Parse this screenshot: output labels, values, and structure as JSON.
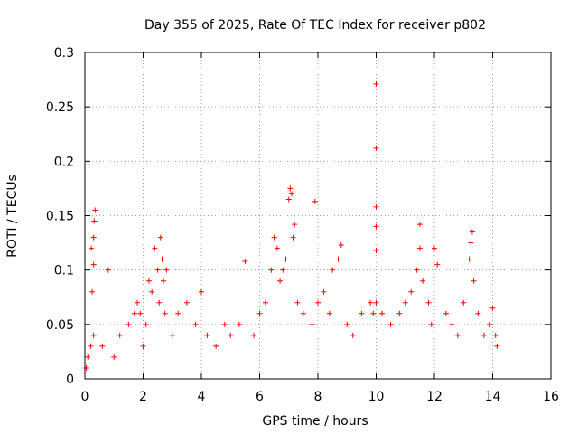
{
  "chart_data": {
    "type": "scatter",
    "title": "Day 355 of 2025, Rate Of TEC Index for receiver p802",
    "xlabel": "GPS time / hours",
    "ylabel": "ROTI / TECUs",
    "xlim": [
      0,
      16
    ],
    "ylim": [
      0,
      0.3
    ],
    "xticks": [
      0,
      2,
      4,
      6,
      8,
      10,
      12,
      14,
      16
    ],
    "yticks": [
      0,
      0.05,
      0.1,
      0.15,
      0.2,
      0.25,
      0.3
    ],
    "xtick_labels": [
      "0",
      "2",
      "4",
      "6",
      "8",
      "10",
      "12",
      "14",
      "16"
    ],
    "ytick_labels": [
      "0",
      "0.05",
      "0.1",
      "0.15",
      "0.2",
      "0.25",
      "0.3"
    ],
    "grid": true,
    "marker": "+",
    "series": [
      {
        "name": "ROTI",
        "color": "#ff0000",
        "x": [
          0.05,
          0.1,
          0.2,
          0.25,
          0.3,
          0.3,
          0.32,
          0.35,
          0.22,
          0.8,
          0.3,
          0.6,
          1.0,
          1.2,
          1.5,
          1.7,
          1.8,
          1.9,
          2.0,
          2.1,
          2.2,
          2.3,
          2.4,
          2.5,
          2.55,
          2.6,
          2.65,
          2.7,
          2.75,
          2.8,
          3.0,
          3.2,
          3.5,
          3.8,
          4.0,
          4.2,
          4.5,
          4.8,
          5.0,
          5.3,
          5.5,
          5.8,
          6.0,
          6.2,
          6.4,
          6.5,
          6.6,
          6.7,
          6.8,
          6.9,
          7.0,
          7.05,
          7.1,
          7.15,
          7.2,
          7.3,
          7.5,
          7.8,
          7.9,
          8.0,
          8.2,
          8.4,
          8.5,
          8.7,
          8.8,
          9.0,
          9.2,
          9.5,
          9.8,
          9.9,
          10.0,
          10.0,
          10.0,
          10.0,
          10.0,
          10.0,
          10.2,
          10.5,
          10.8,
          11.0,
          11.2,
          11.4,
          11.5,
          11.5,
          11.6,
          11.8,
          11.9,
          12.0,
          12.1,
          12.4,
          12.6,
          12.8,
          13.0,
          13.2,
          13.25,
          13.3,
          13.35,
          13.5,
          13.7,
          13.9,
          14.0,
          14.1,
          14.15
        ],
        "y": [
          0.01,
          0.02,
          0.03,
          0.08,
          0.105,
          0.13,
          0.145,
          0.155,
          0.12,
          0.1,
          0.04,
          0.03,
          0.02,
          0.04,
          0.05,
          0.06,
          0.07,
          0.06,
          0.03,
          0.05,
          0.09,
          0.08,
          0.12,
          0.1,
          0.07,
          0.13,
          0.11,
          0.09,
          0.06,
          0.1,
          0.04,
          0.06,
          0.07,
          0.05,
          0.08,
          0.04,
          0.03,
          0.05,
          0.04,
          0.05,
          0.108,
          0.04,
          0.06,
          0.07,
          0.1,
          0.13,
          0.12,
          0.09,
          0.1,
          0.11,
          0.165,
          0.175,
          0.17,
          0.13,
          0.142,
          0.07,
          0.06,
          0.05,
          0.163,
          0.07,
          0.08,
          0.06,
          0.1,
          0.11,
          0.123,
          0.05,
          0.04,
          0.06,
          0.07,
          0.06,
          0.271,
          0.212,
          0.158,
          0.14,
          0.118,
          0.07,
          0.06,
          0.05,
          0.06,
          0.07,
          0.08,
          0.1,
          0.12,
          0.142,
          0.09,
          0.07,
          0.05,
          0.12,
          0.105,
          0.06,
          0.05,
          0.04,
          0.07,
          0.11,
          0.125,
          0.135,
          0.09,
          0.06,
          0.04,
          0.05,
          0.065,
          0.04,
          0.03
        ]
      }
    ]
  }
}
